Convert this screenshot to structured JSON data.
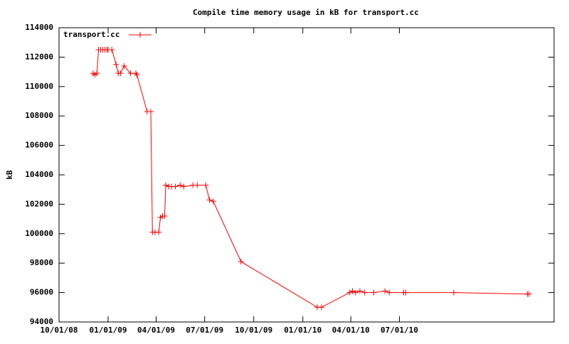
{
  "chart_data": {
    "type": "line",
    "title": "Compile time memory usage in kB for transport.cc",
    "y_label": "kB",
    "x": [
      "2008-12-04",
      "2008-12-07",
      "2008-12-11",
      "2008-12-14",
      "2008-12-18",
      "2008-12-22",
      "2008-12-26",
      "2008-12-30",
      "2009-01-01",
      "2009-01-08",
      "2009-01-16",
      "2009-01-20",
      "2009-01-24",
      "2009-01-31",
      "2009-02-12",
      "2009-02-22",
      "2009-02-24",
      "2009-03-15",
      "2009-03-22",
      "2009-03-25",
      "2009-03-30",
      "2009-04-06",
      "2009-04-09",
      "2009-04-13",
      "2009-04-17",
      "2009-04-19",
      "2009-04-25",
      "2009-04-30",
      "2009-05-07",
      "2009-05-16",
      "2009-05-23",
      "2009-06-09",
      "2009-06-17",
      "2009-07-03",
      "2009-07-10",
      "2009-07-17",
      "2009-09-07",
      "2010-01-28",
      "2010-02-05",
      "2010-03-30",
      "2010-04-04",
      "2010-04-10",
      "2010-04-18",
      "2010-04-27",
      "2010-05-14",
      "2010-06-04",
      "2010-06-12",
      "2010-07-09",
      "2010-07-13",
      "2010-10-11",
      "2011-02-26",
      "2011-03-01"
    ],
    "series": [
      {
        "name": "transport.cc",
        "color": "#ff0000",
        "values": [
          110900,
          110800,
          110900,
          112500,
          112500,
          112500,
          112500,
          112500,
          112500,
          112500,
          111500,
          110900,
          110900,
          111400,
          110900,
          110900,
          110800,
          108300,
          108300,
          100100,
          100100,
          100100,
          101100,
          101200,
          101200,
          103300,
          103200,
          103200,
          103200,
          103300,
          103200,
          103300,
          103300,
          103300,
          102300,
          102200,
          98100,
          95000,
          95000,
          96000,
          96100,
          96000,
          96100,
          96000,
          96000,
          96100,
          96000,
          96000,
          96000,
          96000,
          95900,
          95900
        ]
      }
    ],
    "xlim": [
      "2008-10-01",
      "2011-04-17"
    ],
    "xticks": [
      {
        "value": "2008-10-01",
        "label": "10/01/08"
      },
      {
        "value": "2009-01-01",
        "label": "01/01/09"
      },
      {
        "value": "2009-04-01",
        "label": "04/01/09"
      },
      {
        "value": "2009-07-01",
        "label": "07/01/09"
      },
      {
        "value": "2009-10-01",
        "label": "10/01/09"
      },
      {
        "value": "2010-01-01",
        "label": "01/01/10"
      },
      {
        "value": "2010-04-01",
        "label": "04/01/10"
      },
      {
        "value": "2010-07-01",
        "label": "07/01/10"
      }
    ],
    "ylim": [
      94000,
      114000
    ],
    "yticks": [
      94000,
      96000,
      98000,
      100000,
      102000,
      104000,
      106000,
      108000,
      110000,
      112000,
      114000
    ],
    "legend": "top-left"
  }
}
